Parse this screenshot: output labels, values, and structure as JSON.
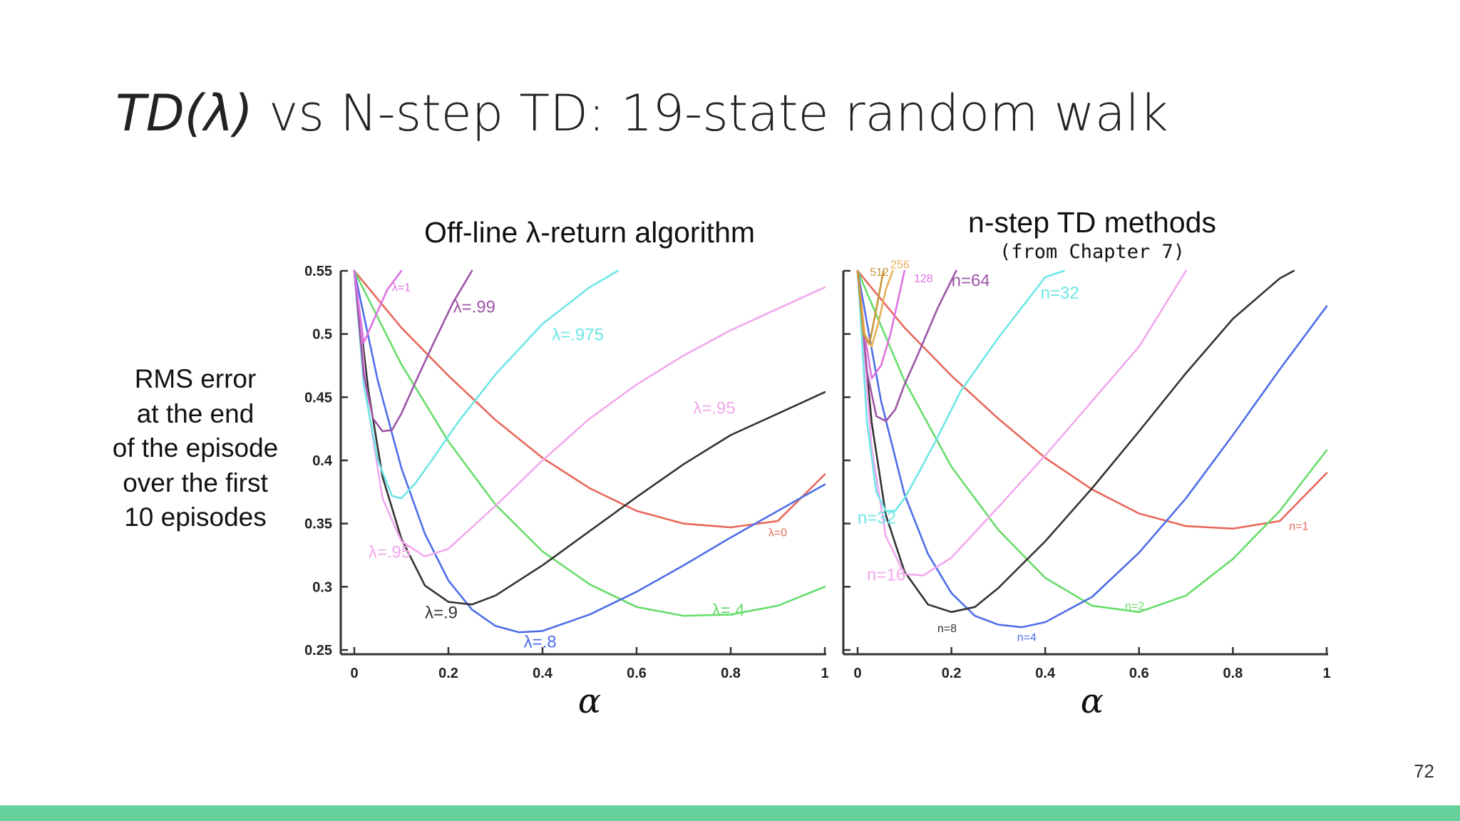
{
  "slide": {
    "title_italic": "TD(λ)",
    "title_rest": "vs N-step TD: 19-state random walk",
    "y_label_lines": [
      "RMS error",
      "at the end",
      "of the episode",
      "over the first",
      "10 episodes"
    ],
    "page_number": "72"
  },
  "chart_data": [
    {
      "type": "line",
      "title": "Off-line λ-return algorithm",
      "subtitle": "",
      "xlabel": "α",
      "ylabel": "RMS error at the end of the episode over the first 10 episodes",
      "xlim": [
        0,
        1
      ],
      "ylim": [
        0.25,
        0.55
      ],
      "x_ticks": [
        "0",
        "0.2",
        "0.4",
        "0.6",
        "0.8",
        "1"
      ],
      "y_ticks": [
        "0.25",
        "0.3",
        "0.35",
        "0.4",
        "0.45",
        "0.5",
        "0.55"
      ],
      "grid": false,
      "series": [
        {
          "name": "λ=0",
          "color": "#e8685a",
          "label_pos": [
            0.88,
            0.34
          ],
          "x": [
            0,
            0.1,
            0.2,
            0.3,
            0.4,
            0.5,
            0.6,
            0.7,
            0.8,
            0.9,
            1.0
          ],
          "y": [
            0.55,
            0.505,
            0.467,
            0.432,
            0.402,
            0.378,
            0.36,
            0.35,
            0.347,
            0.352,
            0.389
          ]
        },
        {
          "name": "λ=.4",
          "color": "#67dd6b",
          "label_pos": [
            0.76,
            0.277
          ],
          "x": [
            0,
            0.1,
            0.2,
            0.3,
            0.4,
            0.5,
            0.6,
            0.7,
            0.8,
            0.9,
            1.0
          ],
          "y": [
            0.55,
            0.476,
            0.415,
            0.365,
            0.328,
            0.302,
            0.284,
            0.277,
            0.278,
            0.285,
            0.3
          ]
        },
        {
          "name": "λ=.8",
          "color": "#4e6ee8",
          "label_pos": [
            0.36,
            0.252
          ],
          "x": [
            0,
            0.05,
            0.1,
            0.15,
            0.2,
            0.25,
            0.3,
            0.35,
            0.4,
            0.5,
            0.6,
            0.7,
            0.8,
            0.9,
            1.0
          ],
          "y": [
            0.55,
            0.463,
            0.394,
            0.342,
            0.305,
            0.282,
            0.269,
            0.264,
            0.265,
            0.278,
            0.296,
            0.317,
            0.339,
            0.36,
            0.381
          ]
        },
        {
          "name": "λ=.9",
          "color": "#333333",
          "label_pos": [
            0.15,
            0.275
          ],
          "x": [
            0,
            0.03,
            0.06,
            0.1,
            0.15,
            0.2,
            0.25,
            0.3,
            0.4,
            0.5,
            0.6,
            0.7,
            0.8,
            0.9,
            1.0
          ],
          "y": [
            0.55,
            0.455,
            0.387,
            0.338,
            0.301,
            0.288,
            0.286,
            0.293,
            0.317,
            0.344,
            0.371,
            0.397,
            0.42,
            0.437,
            0.454
          ]
        },
        {
          "name": "λ=.95",
          "color": "#f2a8ee",
          "label_pos": [
            0.72,
            0.437
          ],
          "label_pos2": [
            0.03,
            0.323
          ],
          "x": [
            0,
            0.03,
            0.06,
            0.1,
            0.15,
            0.2,
            0.3,
            0.4,
            0.5,
            0.6,
            0.7,
            0.8,
            0.9,
            1.0
          ],
          "y": [
            0.55,
            0.44,
            0.37,
            0.336,
            0.324,
            0.33,
            0.364,
            0.4,
            0.433,
            0.46,
            0.483,
            0.503,
            0.52,
            0.537
          ]
        },
        {
          "name": "λ=.975",
          "color": "#6fe6e6",
          "label_pos": [
            0.42,
            0.495
          ],
          "x": [
            0,
            0.02,
            0.05,
            0.08,
            0.1,
            0.13,
            0.17,
            0.22,
            0.3,
            0.4,
            0.5,
            0.56
          ],
          "y": [
            0.55,
            0.46,
            0.4,
            0.372,
            0.37,
            0.382,
            0.403,
            0.43,
            0.468,
            0.508,
            0.537,
            0.55
          ]
        },
        {
          "name": "λ=.99",
          "color": "#9e55a8",
          "label_pos": [
            0.21,
            0.517
          ],
          "x": [
            0,
            0.02,
            0.04,
            0.06,
            0.08,
            0.1,
            0.13,
            0.17,
            0.21,
            0.25
          ],
          "y": [
            0.55,
            0.468,
            0.433,
            0.423,
            0.424,
            0.437,
            0.462,
            0.494,
            0.525,
            0.55
          ]
        },
        {
          "name": "λ=1",
          "color": "#df72e0",
          "label_pos": [
            0.08,
            0.534
          ],
          "x": [
            0,
            0.02,
            0.04,
            0.07,
            0.1
          ],
          "y": [
            0.55,
            0.493,
            0.51,
            0.535,
            0.55
          ]
        }
      ]
    },
    {
      "type": "line",
      "title": "n-step TD methods",
      "subtitle": "(from Chapter 7)",
      "xlabel": "α",
      "ylabel": "RMS error at the end of the episode over the first 10 episodes",
      "xlim": [
        0,
        1
      ],
      "ylim": [
        0.25,
        0.55
      ],
      "x_ticks": [
        "0",
        "0.2",
        "0.4",
        "0.6",
        "0.8",
        "1"
      ],
      "y_ticks": [],
      "grid": false,
      "series": [
        {
          "name": "n=1",
          "color": "#e8685a",
          "label_pos": [
            0.92,
            0.345
          ],
          "x": [
            0,
            0.1,
            0.2,
            0.3,
            0.4,
            0.5,
            0.6,
            0.7,
            0.8,
            0.9,
            1.0
          ],
          "y": [
            0.55,
            0.505,
            0.467,
            0.433,
            0.402,
            0.377,
            0.358,
            0.348,
            0.346,
            0.352,
            0.39
          ]
        },
        {
          "name": "n=2",
          "color": "#67dd6b",
          "label_pos": [
            0.57,
            0.282
          ],
          "x": [
            0,
            0.1,
            0.2,
            0.3,
            0.4,
            0.5,
            0.6,
            0.7,
            0.8,
            0.9,
            1.0
          ],
          "y": [
            0.55,
            0.463,
            0.395,
            0.345,
            0.307,
            0.285,
            0.28,
            0.293,
            0.322,
            0.36,
            0.408
          ]
        },
        {
          "name": "n=4",
          "color": "#4e6ee8",
          "label_pos": [
            0.34,
            0.257
          ],
          "x": [
            0,
            0.05,
            0.1,
            0.15,
            0.2,
            0.25,
            0.3,
            0.35,
            0.4,
            0.5,
            0.6,
            0.7,
            0.8,
            0.9,
            1.0
          ],
          "y": [
            0.55,
            0.447,
            0.373,
            0.326,
            0.295,
            0.277,
            0.27,
            0.268,
            0.272,
            0.292,
            0.327,
            0.37,
            0.42,
            0.472,
            0.522
          ]
        },
        {
          "name": "n=8",
          "color": "#333333",
          "label_pos": [
            0.17,
            0.264
          ],
          "x": [
            0,
            0.03,
            0.06,
            0.1,
            0.15,
            0.2,
            0.25,
            0.3,
            0.4,
            0.5,
            0.6,
            0.7,
            0.8,
            0.9,
            0.93
          ],
          "y": [
            0.55,
            0.43,
            0.357,
            0.312,
            0.286,
            0.28,
            0.284,
            0.299,
            0.336,
            0.378,
            0.423,
            0.469,
            0.512,
            0.544,
            0.55
          ]
        },
        {
          "name": "n=16",
          "color": "#f2a8ee",
          "label_pos": [
            0.02,
            0.305
          ],
          "x": [
            0,
            0.03,
            0.06,
            0.1,
            0.14,
            0.2,
            0.3,
            0.4,
            0.5,
            0.6,
            0.7
          ],
          "y": [
            0.55,
            0.41,
            0.34,
            0.31,
            0.309,
            0.323,
            0.363,
            0.404,
            0.447,
            0.49,
            0.55
          ]
        },
        {
          "name": "n=32",
          "color": "#6fe6e6",
          "label_pos": [
            0.39,
            0.528
          ],
          "label_pos2": [
            0.0,
            0.35
          ],
          "x": [
            0,
            0.02,
            0.04,
            0.06,
            0.08,
            0.1,
            0.13,
            0.17,
            0.22,
            0.3,
            0.4,
            0.44
          ],
          "y": [
            0.55,
            0.43,
            0.375,
            0.36,
            0.36,
            0.37,
            0.39,
            0.418,
            0.455,
            0.497,
            0.545,
            0.55
          ]
        },
        {
          "name": "n=64",
          "color": "#9e55a8",
          "label_pos": [
            0.2,
            0.538
          ],
          "x": [
            0,
            0.02,
            0.04,
            0.06,
            0.08,
            0.1,
            0.13,
            0.17,
            0.21
          ],
          "y": [
            0.55,
            0.47,
            0.435,
            0.431,
            0.44,
            0.46,
            0.485,
            0.52,
            0.55
          ]
        },
        {
          "name": "128",
          "color": "#df72e0",
          "label_pos": [
            0.12,
            0.541
          ],
          "x": [
            0,
            0.015,
            0.03,
            0.05,
            0.07,
            0.1
          ],
          "y": [
            0.55,
            0.5,
            0.465,
            0.475,
            0.5,
            0.55
          ]
        },
        {
          "name": "256",
          "color": "#e8b05a",
          "label_pos": [
            0.07,
            0.552
          ],
          "x": [
            0,
            0.015,
            0.03,
            0.045,
            0.06,
            0.075
          ],
          "y": [
            0.55,
            0.5,
            0.49,
            0.51,
            0.535,
            0.55
          ]
        },
        {
          "name": "512",
          "color": "#c8963c",
          "label_pos": [
            0.026,
            0.546
          ],
          "x": [
            0,
            0.012,
            0.025,
            0.04,
            0.055
          ],
          "y": [
            0.55,
            0.5,
            0.492,
            0.52,
            0.55
          ]
        }
      ]
    }
  ]
}
